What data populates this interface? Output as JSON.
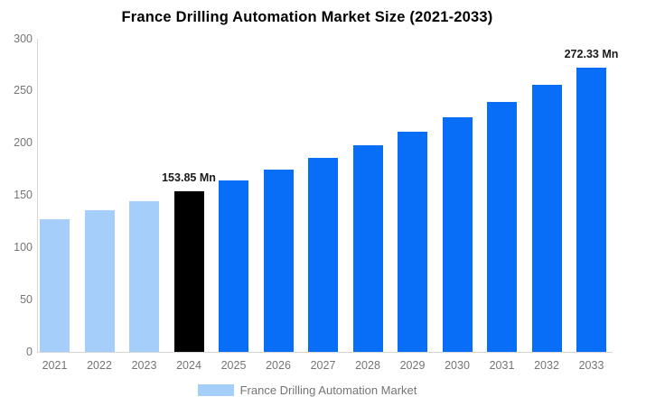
{
  "title": "France Drilling Automation Market Size (2021-2033)",
  "legend": {
    "label": "France Drilling Automation Market",
    "swatch_color": "#a6cefa"
  },
  "colors": {
    "historical_bar": "#a6cefa",
    "base_year_bar": "#000000",
    "forecast_bar": "#086df7",
    "axis_line": "#d6d6d6",
    "tick_text": "#757575",
    "title_text": "#000000",
    "data_label_text": "#1a1a1a"
  },
  "chart_data": {
    "type": "bar",
    "title": "France Drilling Automation Market Size (2021-2033)",
    "xlabel": "",
    "ylabel": "",
    "unit": "Mn",
    "categories": [
      "2021",
      "2022",
      "2023",
      "2024",
      "2025",
      "2026",
      "2027",
      "2028",
      "2029",
      "2030",
      "2031",
      "2032",
      "2033"
    ],
    "values": [
      127.2,
      135.5,
      144.4,
      153.85,
      163.9,
      174.7,
      186.1,
      198.3,
      211.3,
      225.1,
      239.9,
      255.6,
      272.33
    ],
    "bar_colors": [
      "#a6cefa",
      "#a6cefa",
      "#a6cefa",
      "#000000",
      "#086df7",
      "#086df7",
      "#086df7",
      "#086df7",
      "#086df7",
      "#086df7",
      "#086df7",
      "#086df7",
      "#086df7"
    ],
    "data_labels": [
      {
        "index": 3,
        "text": "153.85 Mn"
      },
      {
        "index": 12,
        "text": "272.33 Mn"
      }
    ],
    "ylim": [
      0,
      300
    ],
    "yticks": [
      0,
      50,
      100,
      150,
      200,
      250,
      300
    ],
    "grid": false,
    "legend_position": "bottom",
    "legend_entries": [
      "France Drilling Automation Market"
    ]
  }
}
